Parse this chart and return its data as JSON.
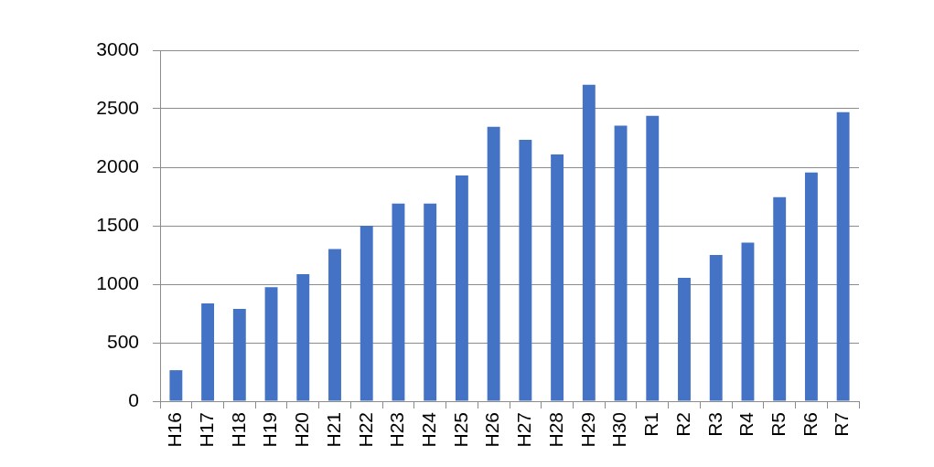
{
  "chart_data": {
    "type": "bar",
    "categories": [
      "H16",
      "H17",
      "H18",
      "H19",
      "H20",
      "H21",
      "H22",
      "H23",
      "H24",
      "H25",
      "H26",
      "H27",
      "H28",
      "H29",
      "H30",
      "R1",
      "R2",
      "R3",
      "R4",
      "R5",
      "R6",
      "R7"
    ],
    "values": [
      265,
      835,
      790,
      975,
      1085,
      1300,
      1500,
      1690,
      1690,
      1930,
      2345,
      2235,
      2110,
      2705,
      2355,
      2440,
      1055,
      1250,
      1355,
      1745,
      1955,
      2470
    ],
    "color": "#4472c4",
    "ylim": [
      0,
      3000
    ],
    "yticks": [
      0,
      500,
      1000,
      1500,
      2000,
      2500,
      3000
    ],
    "grid": "y"
  }
}
